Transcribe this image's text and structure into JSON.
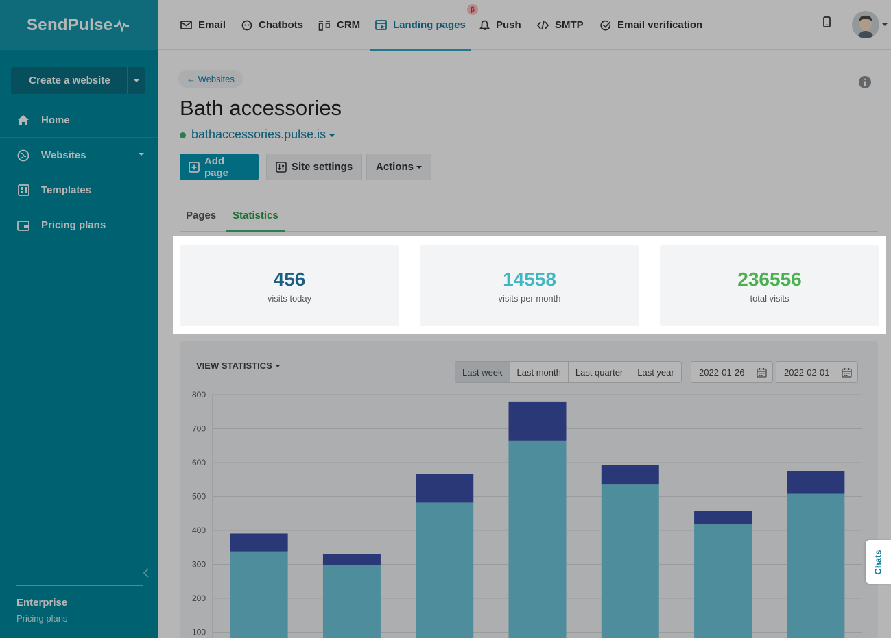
{
  "brand": {
    "logo_text": "SendPulse"
  },
  "sidebar": {
    "create_label": "Create a website",
    "items": [
      {
        "label": "Home",
        "icon": "home-icon"
      },
      {
        "label": "Websites",
        "icon": "globe-icon"
      },
      {
        "label": "Templates",
        "icon": "templates-icon"
      },
      {
        "label": "Pricing plans",
        "icon": "wallet-icon"
      }
    ],
    "footer_title": "Enterprise",
    "footer_sub": "Pricing plans"
  },
  "topnav": {
    "items": [
      {
        "label": "Email",
        "icon": "mail-icon"
      },
      {
        "label": "Chatbots",
        "icon": "chatbot-icon"
      },
      {
        "label": "CRM",
        "icon": "crm-icon"
      },
      {
        "label": "Landing pages",
        "icon": "landing-icon",
        "active": true,
        "badge": "β"
      },
      {
        "label": "Push",
        "icon": "bell-icon"
      },
      {
        "label": "SMTP",
        "icon": "code-icon"
      },
      {
        "label": "Email verification",
        "icon": "check-circle-icon"
      }
    ]
  },
  "page": {
    "back_label": "← Websites",
    "title": "Bath accessories",
    "domain": "bathaccessories.pulse.is",
    "add_page": "Add page",
    "site_settings": "Site settings",
    "actions": "Actions",
    "tabs": [
      "Pages",
      "Statistics"
    ],
    "active_tab": "Statistics"
  },
  "stats": [
    {
      "value": "456",
      "label": "visits today",
      "color": "#1b5e83"
    },
    {
      "value": "14558",
      "label": "visits per month",
      "color": "#3fb6c2"
    },
    {
      "value": "236556",
      "label": "total visits",
      "color": "#4caf50"
    }
  ],
  "filters": {
    "view_label": "VIEW STATISTICS",
    "ranges": [
      "Last week",
      "Last month",
      "Last quarter",
      "Last year"
    ],
    "active_range": "Last week",
    "date_from": "2022-01-26",
    "date_to": "2022-02-01"
  },
  "chart_data": {
    "type": "bar",
    "stacked": true,
    "ylim": [
      0,
      800
    ],
    "yticks": [
      100,
      200,
      300,
      400,
      500,
      600,
      700,
      800
    ],
    "categories": [
      "",
      "",
      "",
      "",
      "",
      "",
      ""
    ],
    "series": [
      {
        "values": [
          338,
          298,
          482,
          665,
          535,
          418,
          508
        ],
        "color": "#6cc6db"
      },
      {
        "values": [
          53,
          32,
          85,
          115,
          58,
          40,
          67
        ],
        "color": "#3d4fa8"
      }
    ],
    "grid": true
  },
  "chats_label": "Chats"
}
